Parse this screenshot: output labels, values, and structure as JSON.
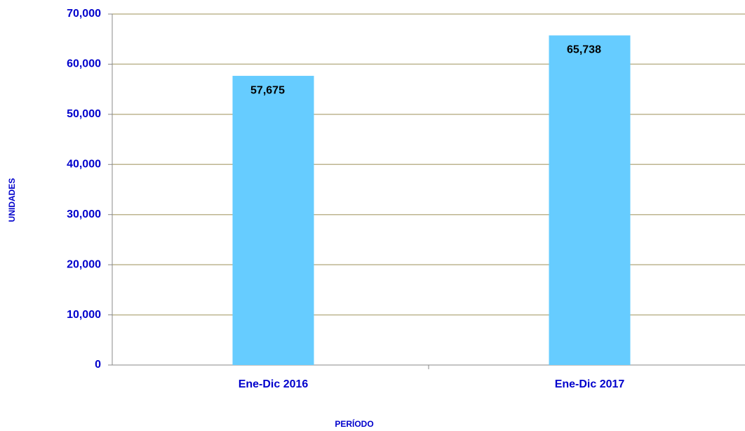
{
  "chart_data": {
    "type": "bar",
    "categories": [
      "Ene-Dic 2016",
      "Ene-Dic 2017"
    ],
    "values": [
      57675,
      65738
    ],
    "value_labels": [
      "57,675",
      "65,738"
    ],
    "color": "#66ccff",
    "x_label": "PERÍODO",
    "y_label": "UNIDADES",
    "ylim": [
      0,
      70000
    ],
    "yticks": [
      0,
      {
        "value": 10000,
        "label": "10,000"
      },
      {
        "value": 20000,
        "label": "20,000"
      },
      {
        "value": 30000,
        "label": "30,000"
      },
      {
        "value": 40000,
        "label": "40,000"
      },
      {
        "value": 50000,
        "label": "50,000"
      },
      {
        "value": 60000,
        "label": "60,000"
      },
      {
        "value": 70000,
        "label": "70,000"
      }
    ],
    "grid": true
  }
}
